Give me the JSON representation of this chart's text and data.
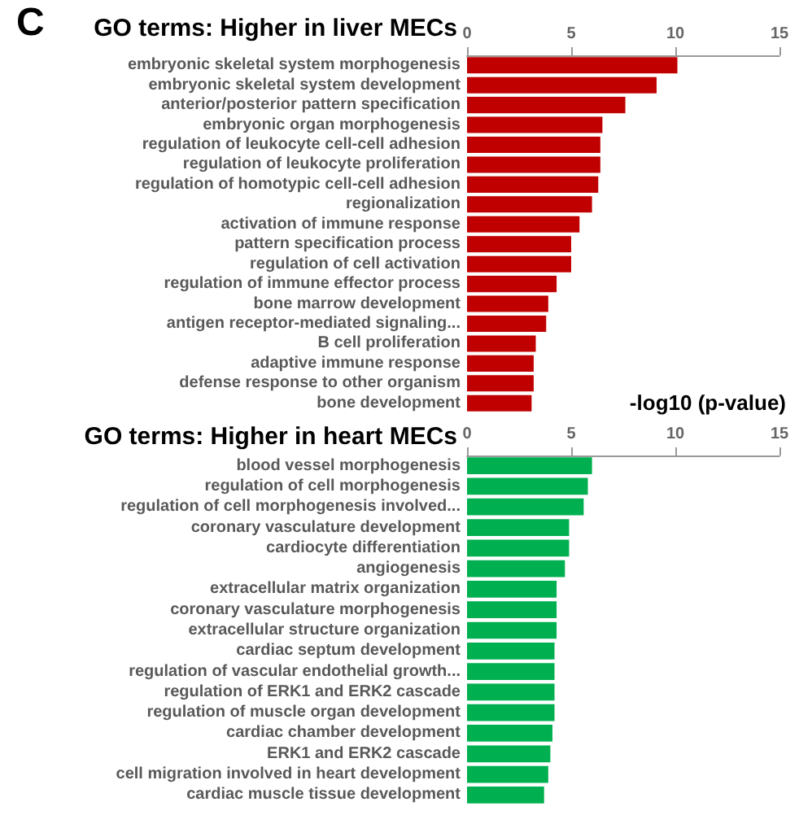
{
  "chart_data": [
    {
      "type": "bar",
      "orientation": "horizontal",
      "title": "GO terms: Higher in liver MECs",
      "xlabel": "-log10 (p-value)",
      "annotations": [
        "C"
      ],
      "color": "#c00000",
      "xlim": [
        0,
        15
      ],
      "xticks": [
        0,
        5,
        10,
        15
      ],
      "categories": [
        "embryonic skeletal system morphogenesis",
        "embryonic skeletal system development",
        "anterior/posterior pattern specification",
        "embryonic organ morphogenesis",
        "regulation of leukocyte cell-cell adhesion",
        "regulation of leukocyte proliferation",
        "regulation of homotypic cell-cell adhesion",
        "regionalization",
        "activation of immune response",
        "pattern specification process",
        "regulation of cell activation",
        "regulation of immune effector process",
        "bone marrow development",
        "antigen receptor-mediated signaling...",
        "B cell proliferation",
        "adaptive immune response",
        "defense response to other organism",
        "bone development"
      ],
      "values": [
        10.1,
        9.1,
        7.6,
        6.5,
        6.4,
        6.4,
        6.3,
        6.0,
        5.4,
        5.0,
        5.0,
        4.3,
        3.9,
        3.8,
        3.3,
        3.2,
        3.2,
        3.1
      ]
    },
    {
      "type": "bar",
      "orientation": "horizontal",
      "title": "GO terms: Higher in heart MECs",
      "color": "#00b050",
      "xlim": [
        0,
        15
      ],
      "xticks": [
        0,
        5,
        10,
        15
      ],
      "categories": [
        "blood vessel morphogenesis",
        "regulation of cell morphogenesis",
        "regulation of cell morphogenesis involved...",
        "coronary vasculature development",
        "cardiocyte differentiation",
        "angiogenesis",
        "extracellular matrix organization",
        "coronary vasculature morphogenesis",
        "extracellular structure organization",
        "cardiac septum development",
        "regulation of vascular endothelial growth...",
        "regulation of ERK1 and ERK2 cascade",
        "regulation of muscle organ development",
        "cardiac chamber development",
        "ERK1 and ERK2 cascade",
        "cell migration involved in heart development",
        "cardiac muscle tissue development"
      ],
      "values": [
        6.0,
        5.8,
        5.6,
        4.9,
        4.9,
        4.7,
        4.3,
        4.3,
        4.3,
        4.2,
        4.2,
        4.2,
        4.2,
        4.1,
        4.0,
        3.9,
        3.7
      ]
    }
  ]
}
